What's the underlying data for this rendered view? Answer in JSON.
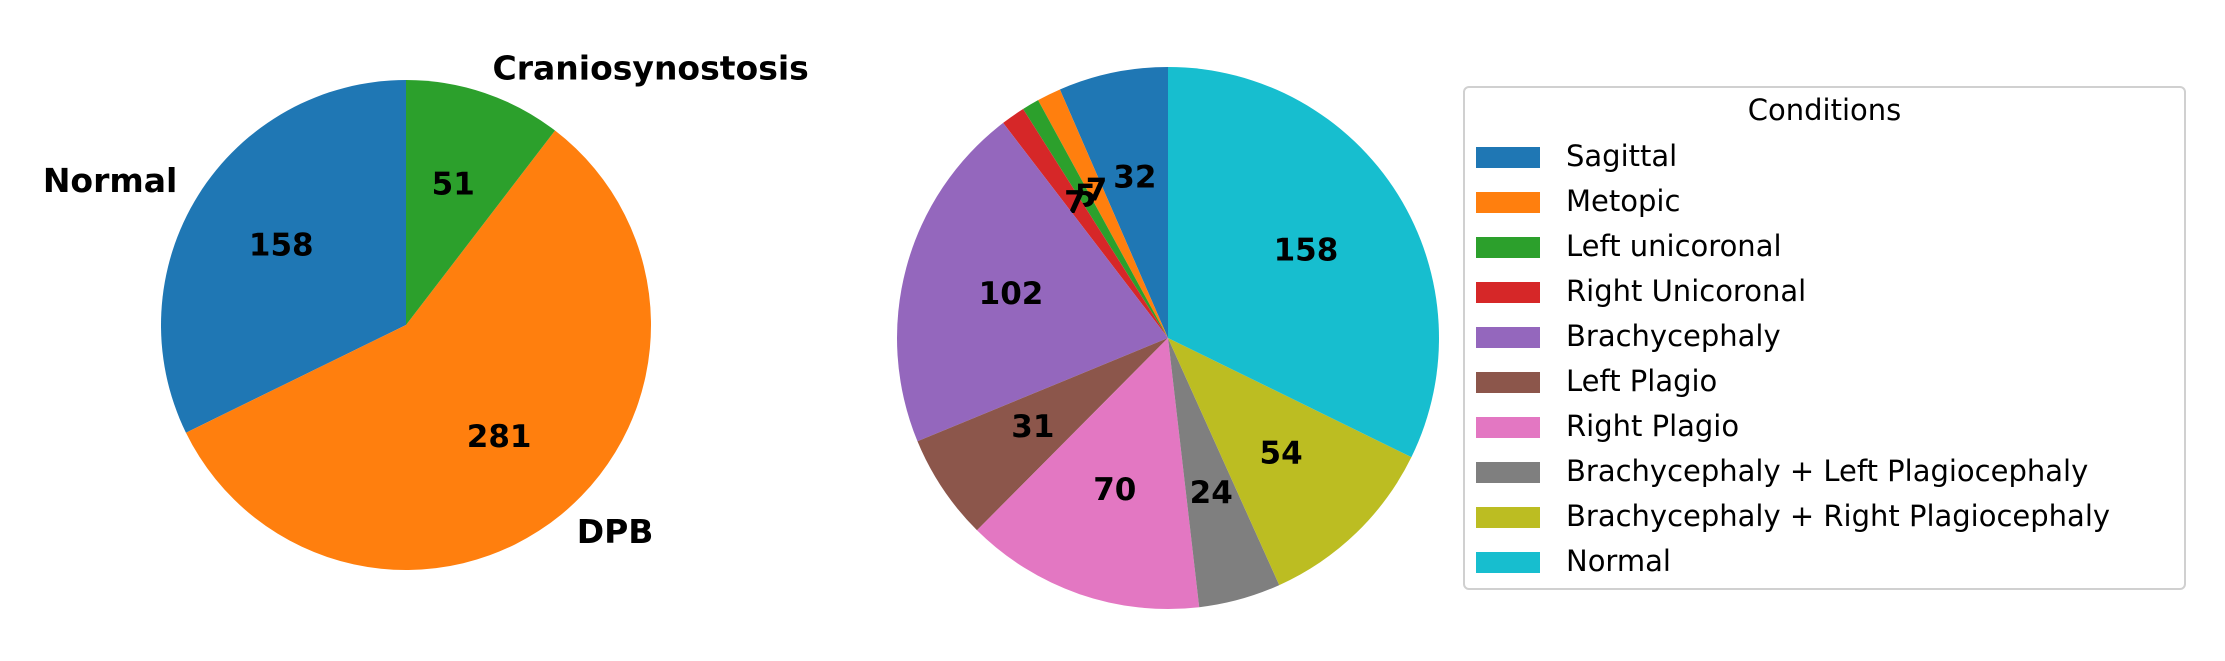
{
  "chart_data": [
    {
      "type": "pie",
      "start_angle": 90,
      "categories": [
        "Normal",
        "DPB",
        "Craniosynostosis"
      ],
      "values": [
        158,
        281,
        51
      ],
      "colors": [
        "#1f77b4",
        "#ff7f0e",
        "#2ca02c"
      ],
      "outer_labels": true
    },
    {
      "type": "pie",
      "start_angle": 90,
      "categories": [
        "Sagittal",
        "Metopic",
        "Left unicoronal",
        "Right Unicoronal",
        "Brachycephaly",
        "Left Plagio",
        "Right Plagio",
        "Brachycephaly + Left Plagiocephaly",
        "Brachycephaly + Right Plagiocephaly",
        "Normal"
      ],
      "values": [
        32,
        7,
        5,
        7,
        102,
        31,
        70,
        24,
        54,
        158
      ],
      "colors": [
        "#1f77b4",
        "#ff7f0e",
        "#2ca02c",
        "#d62728",
        "#9467bd",
        "#8c564b",
        "#e377c2",
        "#7f7f7f",
        "#bcbd22",
        "#17becf"
      ],
      "outer_labels": false,
      "legend": "right",
      "legend_title": "Conditions"
    }
  ]
}
